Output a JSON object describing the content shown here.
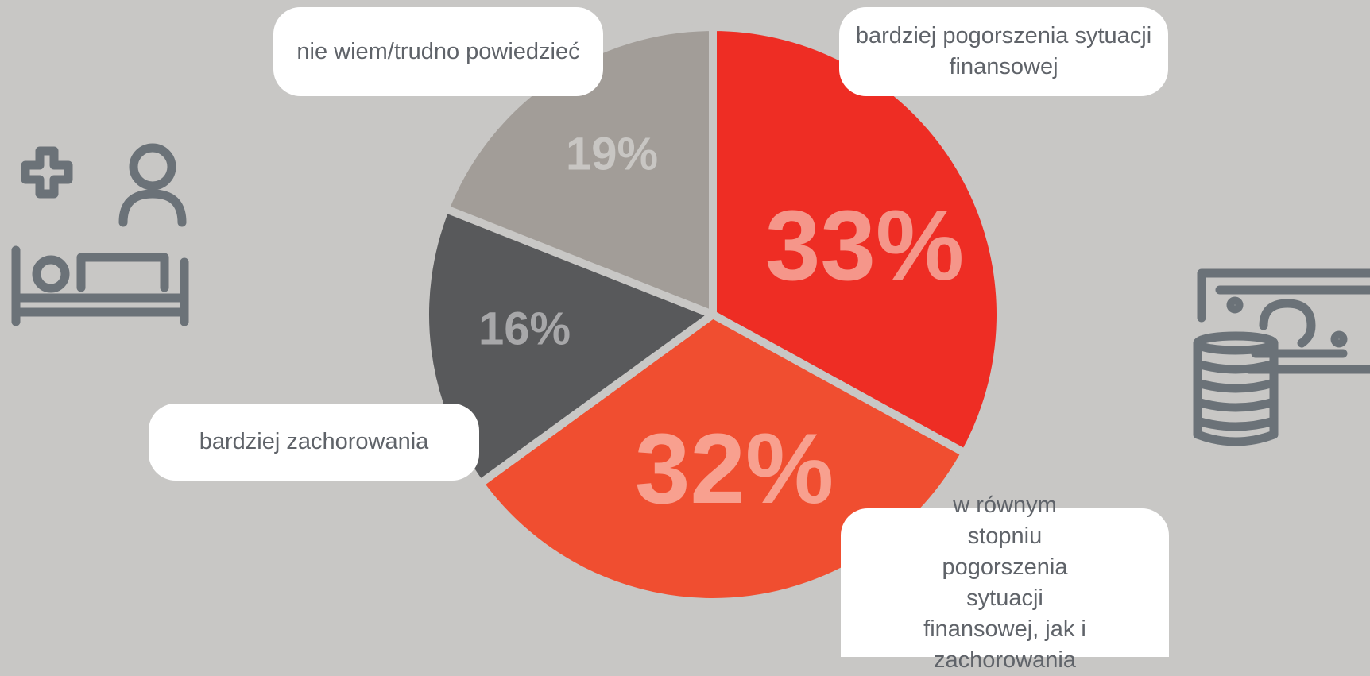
{
  "chart_data": {
    "type": "pie",
    "categories": [
      "bardziej pogorszenia sytuacji finansowej",
      "w równym stopniu pogorszenia sytuacji finansowej, jak i zachorowania",
      "bardziej zachorowania",
      "nie wiem/trudno powiedzieć"
    ],
    "values": [
      33,
      32,
      16,
      19
    ],
    "value_labels": [
      "33%",
      "32%",
      "16%",
      "19%"
    ],
    "colors": [
      "#ee2d24",
      "#f04e30",
      "#58595b",
      "#a29d98"
    ]
  }
}
